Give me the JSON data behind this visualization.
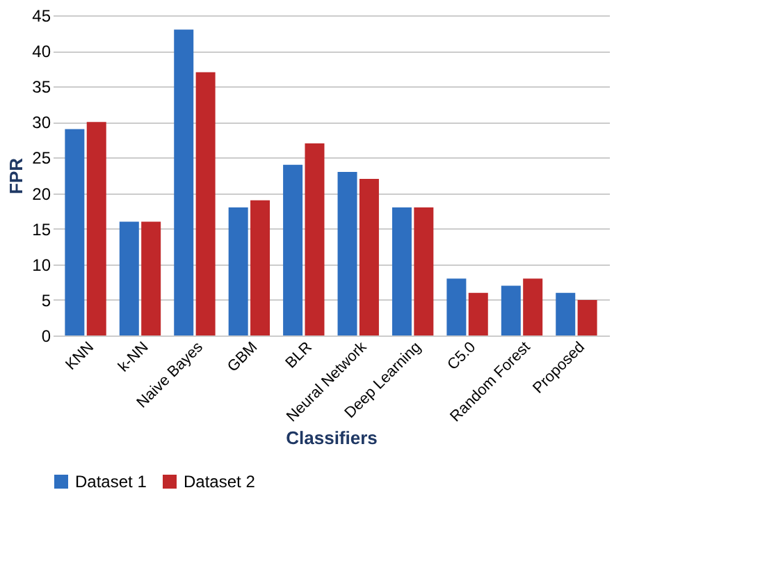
{
  "chart_data": {
    "type": "bar",
    "xlabel": "Classifiers",
    "ylabel": "FPR",
    "categories": [
      "KNN",
      "k-NN",
      "Naive Bayes",
      "GBM",
      "BLR",
      "Neural Network",
      "Deep Learning",
      "C5.0",
      "Random Forest",
      "Proposed"
    ],
    "series": [
      {
        "name": "Dataset 1",
        "color": "#2e6fc0",
        "values": [
          29,
          16,
          43,
          18,
          24,
          23,
          18,
          8,
          7,
          6
        ]
      },
      {
        "name": "Dataset 2",
        "color": "#c0282a",
        "values": [
          30,
          16,
          37,
          19,
          27,
          22,
          18,
          6,
          8,
          5
        ]
      }
    ],
    "ylim": [
      0,
      45
    ],
    "yticks": [
      0,
      5,
      10,
      15,
      20,
      25,
      30,
      35,
      40,
      45
    ],
    "grid": "y",
    "legend": "bottom"
  }
}
